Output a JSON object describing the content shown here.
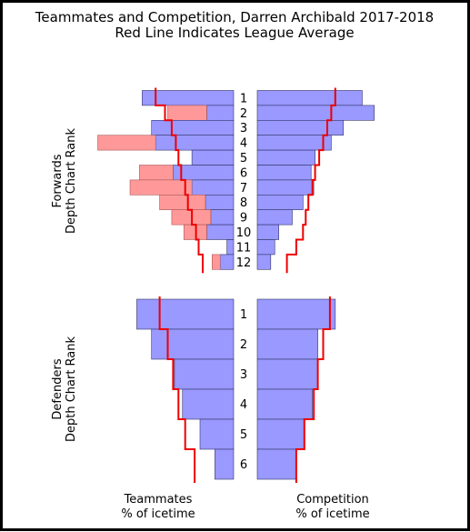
{
  "chart_data": {
    "type": "bar",
    "title_line1": "Teammates and Competition, Darren Archibald 2017-2018",
    "title_line2": "Red Line Indicates League Average",
    "colors": {
      "bar": "#9999ff",
      "overflow": "#ff9999",
      "line": "#ee0000",
      "edge": "#333366"
    },
    "forwards": {
      "ylabel_line1": "Forwards",
      "ylabel_line2": "Depth Chart Rank",
      "ranks": [
        "1",
        "2",
        "3",
        "4",
        "5",
        "6",
        "7",
        "8",
        "9",
        "10",
        "11",
        "12"
      ],
      "teammates_pct": [
        68,
        20,
        61,
        58,
        31,
        45,
        31,
        21,
        17,
        20,
        5,
        10
      ],
      "teammates_overflow_pct": [
        0,
        29,
        0,
        43,
        0,
        25,
        46,
        34,
        29,
        17,
        0,
        6
      ],
      "competition_pct": [
        78,
        87,
        64,
        55,
        43,
        40,
        42,
        34,
        26,
        16,
        13,
        10
      ],
      "league_avg_teammates_pct": [
        58,
        51,
        46,
        43,
        41,
        39,
        36,
        34,
        31,
        28,
        26,
        23
      ],
      "league_avg_competition_pct": [
        58,
        55,
        52,
        49,
        46,
        43,
        41,
        38,
        36,
        34,
        29,
        22
      ]
    },
    "defenders": {
      "ylabel_line1": "Defenders",
      "ylabel_line2": "Depth Chart Rank",
      "ranks": [
        "1",
        "2",
        "3",
        "4",
        "5",
        "6"
      ],
      "teammates_pct": [
        72,
        61,
        44,
        38,
        25,
        14
      ],
      "competition_pct": [
        58,
        45,
        45,
        41,
        35,
        29
      ],
      "league_avg_teammates_pct": [
        55,
        49,
        45,
        41,
        36,
        29
      ],
      "league_avg_competition_pct": [
        54,
        49,
        45,
        42,
        35,
        29
      ]
    },
    "xlabel_left_line1": "Teammates",
    "xlabel_left_line2": "% of icetime",
    "xlabel_right_line1": "Competition",
    "xlabel_right_line2": "% of icetime"
  }
}
